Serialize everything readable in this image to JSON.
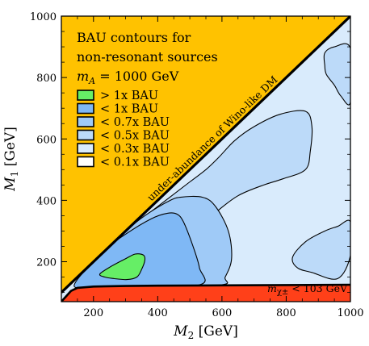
{
  "chart_data": {
    "type": "contour",
    "title_lines": [
      "BAU contours for",
      "non-resonant sources"
    ],
    "title_param": {
      "symbol": "m",
      "subscript": "A",
      "value": " = 1000 GeV"
    },
    "xlabel": {
      "symbol": "M",
      "subscript": "2",
      "unit": " [GeV]"
    },
    "ylabel": {
      "symbol": "M",
      "subscript": "1",
      "unit": " [GeV]"
    },
    "xlim": [
      100,
      1000
    ],
    "ylim": [
      70,
      1000
    ],
    "xticks": [
      200,
      400,
      600,
      800,
      1000
    ],
    "yticks": [
      200,
      400,
      600,
      800,
      1000
    ],
    "xtick_labels": [
      "200",
      "400",
      "600",
      "800",
      "1000"
    ],
    "ytick_labels": [
      "200",
      "400",
      "600",
      "800",
      "1000"
    ],
    "grid": false,
    "legend_position": "upper-left",
    "legend": [
      {
        "label": "> 1x BAU",
        "color": "#66ee66"
      },
      {
        "label": "< 1x BAU",
        "color": "#7fb8f5"
      },
      {
        "label": "< 0.7x BAU",
        "color": "#9fcaf7"
      },
      {
        "label": "< 0.5x BAU",
        "color": "#bcdaf9"
      },
      {
        "label": "< 0.3x BAU",
        "color": "#d9ebfc"
      },
      {
        "label": "< 0.1x BAU",
        "color": "#ffffff"
      }
    ],
    "excluded_regions": [
      {
        "name": "under-abundance of Wino-like DM",
        "color": "#ffc200",
        "boundary": "M1 = M2"
      },
      {
        "name": "chargino mass bound",
        "color": "#ff4019",
        "label_symbol": "m",
        "label_sub": "χ±",
        "label_rest": " < 103 GeV"
      }
    ],
    "chargino_boundary": [
      [
        100,
        70
      ],
      [
        130,
        105
      ],
      [
        150,
        115
      ],
      [
        200,
        119
      ],
      [
        300,
        121
      ],
      [
        400,
        122
      ],
      [
        600,
        123
      ],
      [
        800,
        124
      ],
      [
        1000,
        125
      ]
    ],
    "contours": [
      {
        "level": "< 0.3x BAU",
        "color": "#bcdaf9",
        "points": [
          [
            1000,
            720
          ],
          [
            970,
            740
          ],
          [
            950,
            775
          ],
          [
            925,
            810
          ],
          [
            920,
            840
          ],
          [
            920,
            880
          ],
          [
            950,
            900
          ],
          [
            1000,
            895
          ]
        ]
      },
      {
        "level": "< 0.3x BAU",
        "color": "#bcdaf9",
        "points": [
          [
            1000,
            220
          ],
          [
            1000,
            330
          ],
          [
            960,
            315
          ],
          [
            920,
            300
          ],
          [
            860,
            265
          ],
          [
            820,
            215
          ],
          [
            835,
            180
          ],
          [
            880,
            165
          ],
          [
            960,
            145
          ]
        ]
      },
      {
        "level": "< 0.3x BAU",
        "color": "#bcdaf9",
        "points": [
          [
            170,
            130
          ],
          [
            200,
            190
          ],
          [
            240,
            240
          ],
          [
            300,
            300
          ],
          [
            400,
            380
          ],
          [
            500,
            460
          ],
          [
            550,
            500
          ],
          [
            590,
            540
          ],
          [
            640,
            595
          ],
          [
            700,
            640
          ],
          [
            780,
            680
          ],
          [
            860,
            690
          ],
          [
            880,
            640
          ],
          [
            875,
            560
          ],
          [
            860,
            500
          ],
          [
            790,
            470
          ],
          [
            730,
            450
          ],
          [
            650,
            415
          ],
          [
            580,
            360
          ],
          [
            540,
            320
          ],
          [
            500,
            275
          ],
          [
            470,
            220
          ],
          [
            450,
            160
          ],
          [
            430,
            126
          ],
          [
            300,
            122
          ],
          [
            230,
            120
          ]
        ]
      },
      {
        "level": "< 0.5x BAU",
        "color": "#9fcaf7",
        "points": [
          [
            180,
            135
          ],
          [
            200,
            190
          ],
          [
            240,
            240
          ],
          [
            300,
            300
          ],
          [
            360,
            350
          ],
          [
            430,
            395
          ],
          [
            470,
            410
          ],
          [
            540,
            410
          ],
          [
            580,
            380
          ],
          [
            620,
            300
          ],
          [
            630,
            210
          ],
          [
            610,
            150
          ],
          [
            590,
            124
          ],
          [
            300,
            122
          ],
          [
            230,
            120
          ]
        ]
      },
      {
        "level": "< 1x BAU",
        "color": "#7fb8f5",
        "points": [
          [
            140,
            120
          ],
          [
            180,
            180
          ],
          [
            230,
            235
          ],
          [
            300,
            290
          ],
          [
            380,
            340
          ],
          [
            430,
            358
          ],
          [
            460,
            355
          ],
          [
            480,
            330
          ],
          [
            510,
            250
          ],
          [
            530,
            180
          ],
          [
            530,
            125
          ],
          [
            300,
            122
          ],
          [
            200,
            119
          ]
        ]
      },
      {
        "level": "> 1x BAU",
        "color": "#66ee66",
        "points": [
          [
            220,
            160
          ],
          [
            255,
            185
          ],
          [
            300,
            210
          ],
          [
            330,
            225
          ],
          [
            355,
            222
          ],
          [
            360,
            205
          ],
          [
            350,
            175
          ],
          [
            335,
            150
          ],
          [
            305,
            142
          ],
          [
            265,
            145
          ],
          [
            235,
            150
          ]
        ]
      }
    ],
    "annotations": [
      {
        "text": "under-abundance of Wino-like DM",
        "position": "along diagonal"
      }
    ]
  }
}
